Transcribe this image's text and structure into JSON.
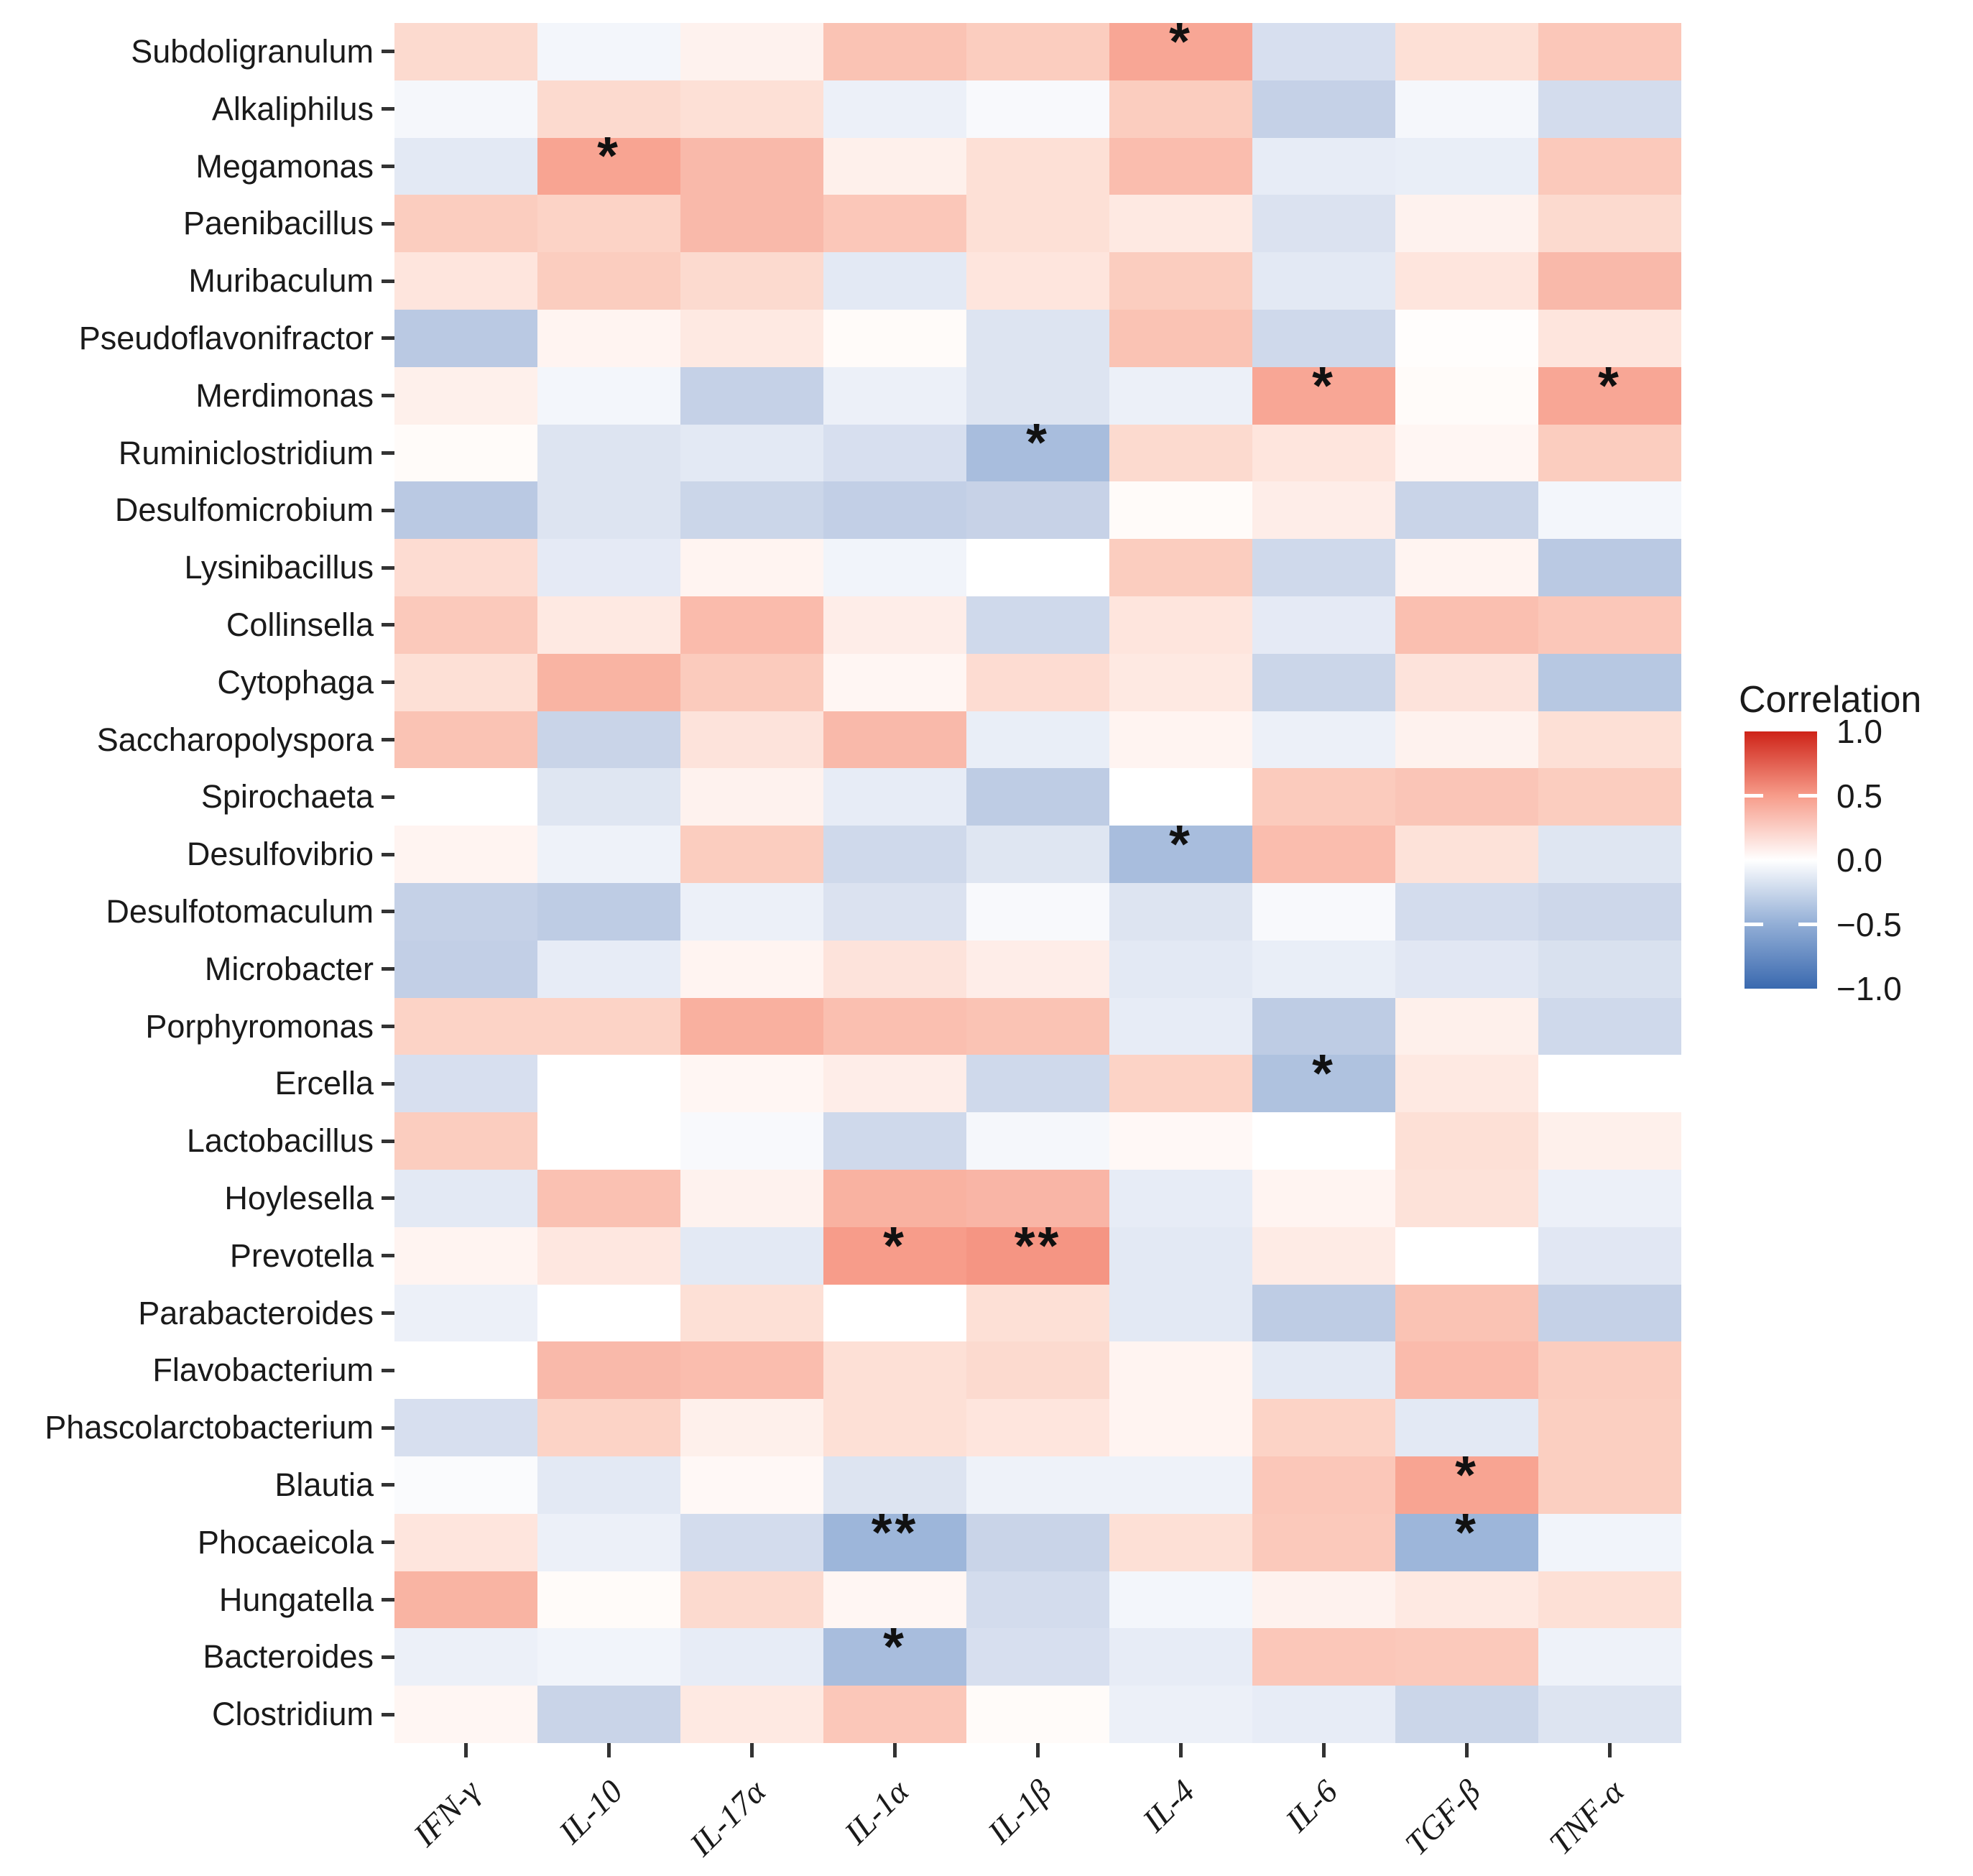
{
  "figure": {
    "kind": "correlation-heatmap"
  },
  "legend": {
    "title": "Correlation",
    "tick_labels": [
      "1.0",
      "0.5",
      "0.0",
      "−0.5",
      "−1.0"
    ]
  },
  "chart_data": {
    "type": "heatmap",
    "title": "",
    "xlabel": "",
    "ylabel": "",
    "legend_position": "right",
    "grid": false,
    "value_range": [
      -1.0,
      1.0
    ],
    "x_categories": [
      "IFN-γ",
      "IL-10",
      "IL-17α",
      "IL-1α",
      "IL-1β",
      "IL-4",
      "IL-6",
      "TGF-β",
      "TNF-α"
    ],
    "y_categories": [
      "Subdoligranulum",
      "Alkaliphilus",
      "Megamonas",
      "Paenibacillus",
      "Muribaculum",
      "Pseudoflavonifractor",
      "Merdimonas",
      "Ruminiclostridium",
      "Desulfomicrobium",
      "Lysinibacillus",
      "Collinsella",
      "Cytophaga",
      "Saccharopolyspora",
      "Spirochaeta",
      "Desulfovibrio",
      "Desulfotomaculum",
      "Microbacter",
      "Porphyromonas",
      "Ercella",
      "Lactobacillus",
      "Hoylesella",
      "Prevotella",
      "Parabacteroides",
      "Flavobacterium",
      "Phascolarctobacterium",
      "Blautia",
      "Phocaeicola",
      "Hungatella",
      "Bacteroides",
      "Clostridium"
    ],
    "values": [
      [
        0.18,
        -0.05,
        0.06,
        0.3,
        0.25,
        0.45,
        -0.18,
        0.15,
        0.28
      ],
      [
        -0.04,
        0.18,
        0.15,
        -0.08,
        -0.03,
        0.25,
        -0.27,
        -0.04,
        -0.2
      ],
      [
        -0.12,
        0.46,
        0.35,
        0.07,
        0.15,
        0.33,
        -0.1,
        -0.09,
        0.27
      ],
      [
        0.25,
        0.22,
        0.35,
        0.28,
        0.15,
        0.1,
        -0.16,
        0.06,
        0.18
      ],
      [
        0.12,
        0.25,
        0.18,
        -0.12,
        0.12,
        0.25,
        -0.12,
        0.12,
        0.35
      ],
      [
        -0.32,
        0.05,
        0.1,
        0.02,
        -0.15,
        0.3,
        -0.22,
        0.01,
        0.12
      ],
      [
        0.07,
        -0.05,
        -0.27,
        -0.08,
        -0.15,
        -0.08,
        0.45,
        0.02,
        0.45
      ],
      [
        0.02,
        -0.15,
        -0.12,
        -0.18,
        -0.4,
        0.18,
        0.12,
        0.04,
        0.25
      ],
      [
        -0.32,
        -0.15,
        -0.24,
        -0.28,
        -0.26,
        0.02,
        0.08,
        -0.25,
        -0.05
      ],
      [
        0.17,
        -0.11,
        0.05,
        -0.06,
        0.0,
        0.25,
        -0.22,
        0.05,
        -0.32
      ],
      [
        0.27,
        0.1,
        0.34,
        0.08,
        -0.22,
        0.12,
        -0.11,
        0.32,
        0.28
      ],
      [
        0.15,
        0.38,
        0.26,
        0.04,
        0.17,
        0.1,
        -0.24,
        0.13,
        -0.33
      ],
      [
        0.3,
        -0.25,
        0.13,
        0.35,
        -0.09,
        0.05,
        -0.08,
        0.06,
        0.15
      ],
      [
        0.0,
        -0.14,
        0.06,
        -0.1,
        -0.3,
        0.0,
        0.26,
        0.29,
        0.25
      ],
      [
        0.05,
        -0.07,
        0.25,
        -0.22,
        -0.14,
        -0.4,
        0.33,
        0.14,
        -0.14
      ],
      [
        -0.27,
        -0.3,
        -0.08,
        -0.16,
        -0.03,
        -0.15,
        -0.03,
        -0.2,
        -0.23
      ],
      [
        -0.28,
        -0.1,
        0.05,
        0.13,
        0.08,
        -0.12,
        -0.09,
        -0.13,
        -0.17
      ],
      [
        0.22,
        0.22,
        0.4,
        0.32,
        0.3,
        -0.1,
        -0.3,
        0.07,
        -0.22
      ],
      [
        -0.18,
        0.0,
        0.04,
        0.08,
        -0.22,
        0.22,
        -0.37,
        0.1,
        0.0
      ],
      [
        0.25,
        0.0,
        -0.03,
        -0.22,
        -0.04,
        0.03,
        0.0,
        0.15,
        0.07
      ],
      [
        -0.12,
        0.31,
        0.06,
        0.39,
        0.37,
        -0.1,
        0.05,
        0.14,
        -0.08
      ],
      [
        0.05,
        0.11,
        -0.12,
        0.5,
        0.53,
        -0.12,
        0.09,
        0.0,
        -0.13
      ],
      [
        -0.08,
        0.0,
        0.15,
        0.0,
        0.15,
        -0.12,
        -0.3,
        0.3,
        -0.27
      ],
      [
        0.0,
        0.35,
        0.33,
        0.15,
        0.18,
        0.05,
        -0.12,
        0.34,
        0.25
      ],
      [
        -0.18,
        0.22,
        0.07,
        0.15,
        0.12,
        0.05,
        0.22,
        -0.12,
        0.24
      ],
      [
        -0.02,
        -0.12,
        0.03,
        -0.15,
        -0.07,
        -0.07,
        0.28,
        0.46,
        0.24
      ],
      [
        0.12,
        -0.08,
        -0.2,
        -0.45,
        -0.25,
        0.15,
        0.27,
        -0.45,
        -0.06
      ],
      [
        0.38,
        0.02,
        0.18,
        0.04,
        -0.2,
        -0.05,
        0.06,
        0.1,
        0.15
      ],
      [
        -0.08,
        -0.06,
        -0.1,
        -0.4,
        -0.18,
        -0.1,
        0.28,
        0.27,
        -0.07
      ],
      [
        0.04,
        -0.25,
        0.1,
        0.28,
        0.02,
        -0.08,
        -0.1,
        -0.24,
        -0.15
      ]
    ],
    "significance": [
      [
        "",
        "",
        "",
        "",
        "",
        "*",
        "",
        "",
        ""
      ],
      [
        "",
        "",
        "",
        "",
        "",
        "",
        "",
        "",
        ""
      ],
      [
        "",
        "*",
        "",
        "",
        "",
        "",
        "",
        "",
        ""
      ],
      [
        "",
        "",
        "",
        "",
        "",
        "",
        "",
        "",
        ""
      ],
      [
        "",
        "",
        "",
        "",
        "",
        "",
        "",
        "",
        ""
      ],
      [
        "",
        "",
        "",
        "",
        "",
        "",
        "",
        "",
        ""
      ],
      [
        "",
        "",
        "",
        "",
        "",
        "",
        "*",
        "",
        "*"
      ],
      [
        "",
        "",
        "",
        "",
        "*",
        "",
        "",
        "",
        ""
      ],
      [
        "",
        "",
        "",
        "",
        "",
        "",
        "",
        "",
        ""
      ],
      [
        "",
        "",
        "",
        "",
        "",
        "",
        "",
        "",
        ""
      ],
      [
        "",
        "",
        "",
        "",
        "",
        "",
        "",
        "",
        ""
      ],
      [
        "",
        "",
        "",
        "",
        "",
        "",
        "",
        "",
        ""
      ],
      [
        "",
        "",
        "",
        "",
        "",
        "",
        "",
        "",
        ""
      ],
      [
        "",
        "",
        "",
        "",
        "",
        "",
        "",
        "",
        ""
      ],
      [
        "",
        "",
        "",
        "",
        "",
        "*",
        "",
        "",
        ""
      ],
      [
        "",
        "",
        "",
        "",
        "",
        "",
        "",
        "",
        ""
      ],
      [
        "",
        "",
        "",
        "",
        "",
        "",
        "",
        "",
        ""
      ],
      [
        "",
        "",
        "",
        "",
        "",
        "",
        "",
        "",
        ""
      ],
      [
        "",
        "",
        "",
        "",
        "",
        "",
        "*",
        "",
        ""
      ],
      [
        "",
        "",
        "",
        "",
        "",
        "",
        "",
        "",
        ""
      ],
      [
        "",
        "",
        "",
        "",
        "",
        "",
        "",
        "",
        ""
      ],
      [
        "",
        "",
        "",
        "*",
        "**",
        "",
        "",
        "",
        ""
      ],
      [
        "",
        "",
        "",
        "",
        "",
        "",
        "",
        "",
        ""
      ],
      [
        "",
        "",
        "",
        "",
        "",
        "",
        "",
        "",
        ""
      ],
      [
        "",
        "",
        "",
        "",
        "",
        "",
        "",
        "",
        ""
      ],
      [
        "",
        "",
        "",
        "",
        "",
        "",
        "",
        "*",
        ""
      ],
      [
        "",
        "",
        "",
        "**",
        "",
        "",
        "",
        "*",
        ""
      ],
      [
        "",
        "",
        "",
        "",
        "",
        "",
        "",
        "",
        ""
      ],
      [
        "",
        "",
        "",
        "*",
        "",
        "",
        "",
        "",
        ""
      ],
      [
        "",
        "",
        "",
        "",
        "",
        "",
        "",
        "",
        ""
      ]
    ],
    "colorbar": {
      "title": "Correlation",
      "min": -1.0,
      "max": 1.0,
      "ticks": [
        1.0,
        0.5,
        0.0,
        -0.5,
        -1.0
      ]
    },
    "color_scale_anchors": [
      {
        "v": -1.0,
        "c": "#3A69AF"
      },
      {
        "v": -0.5,
        "c": "#92AED6"
      },
      {
        "v": -0.25,
        "c": "#C9D4E8"
      },
      {
        "v": -0.1,
        "c": "#E7ECF6"
      },
      {
        "v": 0.0,
        "c": "#FFFFFF"
      },
      {
        "v": 0.1,
        "c": "#FEE9E2"
      },
      {
        "v": 0.25,
        "c": "#FBCDBF"
      },
      {
        "v": 0.5,
        "c": "#F79C8A"
      },
      {
        "v": 1.0,
        "c": "#CE2318"
      }
    ],
    "axis_text_color": "#1A1A1A",
    "tick_color": "#333333",
    "significance_color": "#111111",
    "background": "#FFFFFF"
  }
}
